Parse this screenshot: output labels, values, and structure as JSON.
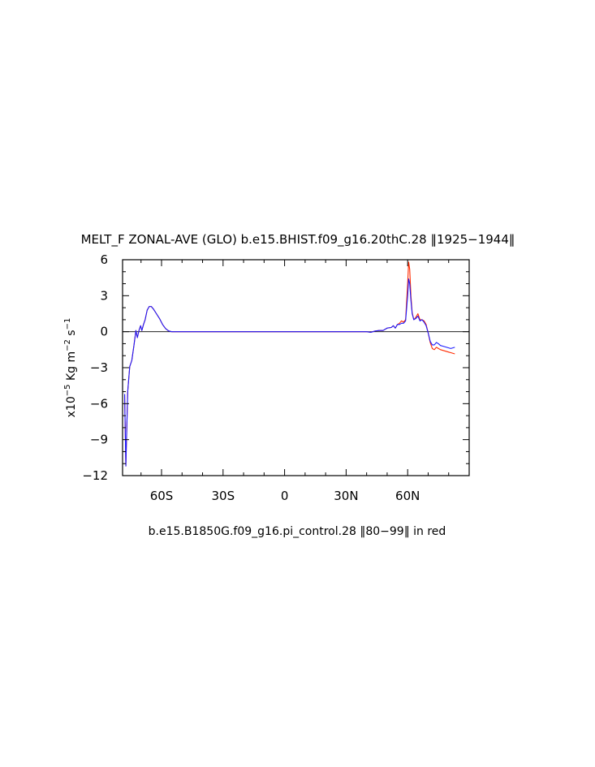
{
  "chart_data": {
    "type": "line",
    "title": "MELT_F ZONAL-AVE (GLO) b.e15.BHIST.f09_g16.20thC.28 ‖1925−1944‖",
    "subtitle": "b.e15.B1850G.f09_g16.pi_control.28 ‖80−99‖ in red",
    "ylabel_base": "x10",
    "ylabel_exp": "−5",
    "ylabel_unit1": " Kg m",
    "ylabel_exp2": "−2",
    "ylabel_unit2": " s",
    "ylabel_exp3": "−1",
    "xlabel": "",
    "xlim": [
      -79,
      90
    ],
    "ylim": [
      -12,
      6
    ],
    "x_ticks": [
      {
        "value": -60,
        "label": "60S"
      },
      {
        "value": -30,
        "label": "30S"
      },
      {
        "value": 0,
        "label": "0"
      },
      {
        "value": 30,
        "label": "30N"
      },
      {
        "value": 60,
        "label": "60N"
      }
    ],
    "y_ticks": [
      {
        "value": 6,
        "label": "6"
      },
      {
        "value": 3,
        "label": "3"
      },
      {
        "value": 0,
        "label": "0"
      },
      {
        "value": -3,
        "label": "−3"
      },
      {
        "value": -6,
        "label": "−6"
      },
      {
        "value": -9,
        "label": "−9"
      },
      {
        "value": -12,
        "label": "−12"
      }
    ],
    "zero_line": true,
    "grid": false,
    "series": [
      {
        "color": "#ff2a00",
        "points": [
          [
            -78,
            -5.2
          ],
          [
            -77.4,
            -11.2
          ],
          [
            -76.5,
            -5.0
          ],
          [
            -75.5,
            -2.9
          ],
          [
            -74.5,
            -2.4
          ],
          [
            -73.5,
            -1.2
          ],
          [
            -72.5,
            0.1
          ],
          [
            -71.8,
            -0.5
          ],
          [
            -71.0,
            0.1
          ],
          [
            -70.2,
            0.5
          ],
          [
            -69.6,
            0.1
          ],
          [
            -68.8,
            0.6
          ],
          [
            -68.0,
            1.0
          ],
          [
            -67.0,
            1.8
          ],
          [
            -66.0,
            2.1
          ],
          [
            -65.0,
            2.1
          ],
          [
            -64.0,
            1.9
          ],
          [
            -62.5,
            1.5
          ],
          [
            -61.0,
            1.1
          ],
          [
            -59.5,
            0.6
          ],
          [
            -58.0,
            0.25
          ],
          [
            -56.5,
            0.06
          ],
          [
            -55.0,
            0.0
          ],
          [
            -50,
            0.0
          ],
          [
            -40,
            0.0
          ],
          [
            -30,
            0.0
          ],
          [
            -20,
            0.0
          ],
          [
            -10,
            0.0
          ],
          [
            0,
            0.0
          ],
          [
            10,
            0.0
          ],
          [
            20,
            0.0
          ],
          [
            30,
            0.0
          ],
          [
            40,
            0.0
          ],
          [
            42,
            -0.05
          ],
          [
            44,
            0.05
          ],
          [
            46,
            0.1
          ],
          [
            48,
            0.1
          ],
          [
            50,
            0.3
          ],
          [
            52,
            0.35
          ],
          [
            53,
            0.5
          ],
          [
            54,
            0.3
          ],
          [
            55,
            0.6
          ],
          [
            56,
            0.7
          ],
          [
            57,
            0.9
          ],
          [
            58,
            0.8
          ],
          [
            59,
            1.0
          ],
          [
            60,
            4.0
          ],
          [
            60.5,
            5.8
          ],
          [
            61,
            5.2
          ],
          [
            61.6,
            3.0
          ],
          [
            62.2,
            1.6
          ],
          [
            63,
            1.0
          ],
          [
            64,
            1.2
          ],
          [
            65,
            1.5
          ],
          [
            66,
            1.0
          ],
          [
            67,
            1.0
          ],
          [
            68,
            0.9
          ],
          [
            69,
            0.6
          ],
          [
            70,
            -0.1
          ],
          [
            71,
            -0.9
          ],
          [
            72,
            -1.4
          ],
          [
            73,
            -1.5
          ],
          [
            74,
            -1.3
          ],
          [
            75,
            -1.4
          ],
          [
            76,
            -1.5
          ],
          [
            77,
            -1.55
          ],
          [
            78,
            -1.6
          ],
          [
            79,
            -1.65
          ],
          [
            80,
            -1.7
          ],
          [
            81,
            -1.75
          ],
          [
            82,
            -1.8
          ],
          [
            83,
            -1.85
          ]
        ]
      },
      {
        "color": "#1a1aff",
        "points": [
          [
            -78,
            -5.2
          ],
          [
            -77.4,
            -11.2
          ],
          [
            -76.5,
            -5.0
          ],
          [
            -75.5,
            -2.9
          ],
          [
            -74.5,
            -2.4
          ],
          [
            -73.5,
            -1.2
          ],
          [
            -72.5,
            0.1
          ],
          [
            -71.8,
            -0.5
          ],
          [
            -71.0,
            0.1
          ],
          [
            -70.2,
            0.5
          ],
          [
            -69.6,
            0.1
          ],
          [
            -68.8,
            0.6
          ],
          [
            -68.0,
            1.0
          ],
          [
            -67.0,
            1.8
          ],
          [
            -66.0,
            2.1
          ],
          [
            -65.0,
            2.1
          ],
          [
            -64.0,
            1.9
          ],
          [
            -62.5,
            1.5
          ],
          [
            -61.0,
            1.1
          ],
          [
            -59.5,
            0.6
          ],
          [
            -58.0,
            0.25
          ],
          [
            -56.5,
            0.06
          ],
          [
            -55.0,
            0.0
          ],
          [
            -50,
            0.0
          ],
          [
            -40,
            0.0
          ],
          [
            -30,
            0.0
          ],
          [
            -20,
            0.0
          ],
          [
            -10,
            0.0
          ],
          [
            0,
            0.0
          ],
          [
            10,
            0.0
          ],
          [
            20,
            0.0
          ],
          [
            30,
            0.0
          ],
          [
            40,
            0.0
          ],
          [
            42,
            -0.05
          ],
          [
            44,
            0.05
          ],
          [
            46,
            0.1
          ],
          [
            48,
            0.1
          ],
          [
            50,
            0.3
          ],
          [
            52,
            0.35
          ],
          [
            53,
            0.5
          ],
          [
            54,
            0.3
          ],
          [
            55,
            0.6
          ],
          [
            56,
            0.6
          ],
          [
            57,
            0.7
          ],
          [
            58,
            0.7
          ],
          [
            59,
            0.9
          ],
          [
            60,
            3.0
          ],
          [
            60.5,
            4.4
          ],
          [
            61,
            4.0
          ],
          [
            61.6,
            2.6
          ],
          [
            62.2,
            1.5
          ],
          [
            63,
            1.0
          ],
          [
            64,
            1.1
          ],
          [
            65,
            1.3
          ],
          [
            66,
            0.9
          ],
          [
            67,
            1.0
          ],
          [
            68,
            0.8
          ],
          [
            69,
            0.5
          ],
          [
            70,
            -0.1
          ],
          [
            71,
            -0.8
          ],
          [
            72,
            -1.1
          ],
          [
            73,
            -1.1
          ],
          [
            74,
            -0.9
          ],
          [
            75,
            -1.0
          ],
          [
            76,
            -1.15
          ],
          [
            77,
            -1.2
          ],
          [
            78,
            -1.25
          ],
          [
            79,
            -1.3
          ],
          [
            80,
            -1.35
          ],
          [
            81,
            -1.4
          ],
          [
            82,
            -1.35
          ],
          [
            83,
            -1.3
          ]
        ]
      }
    ]
  }
}
